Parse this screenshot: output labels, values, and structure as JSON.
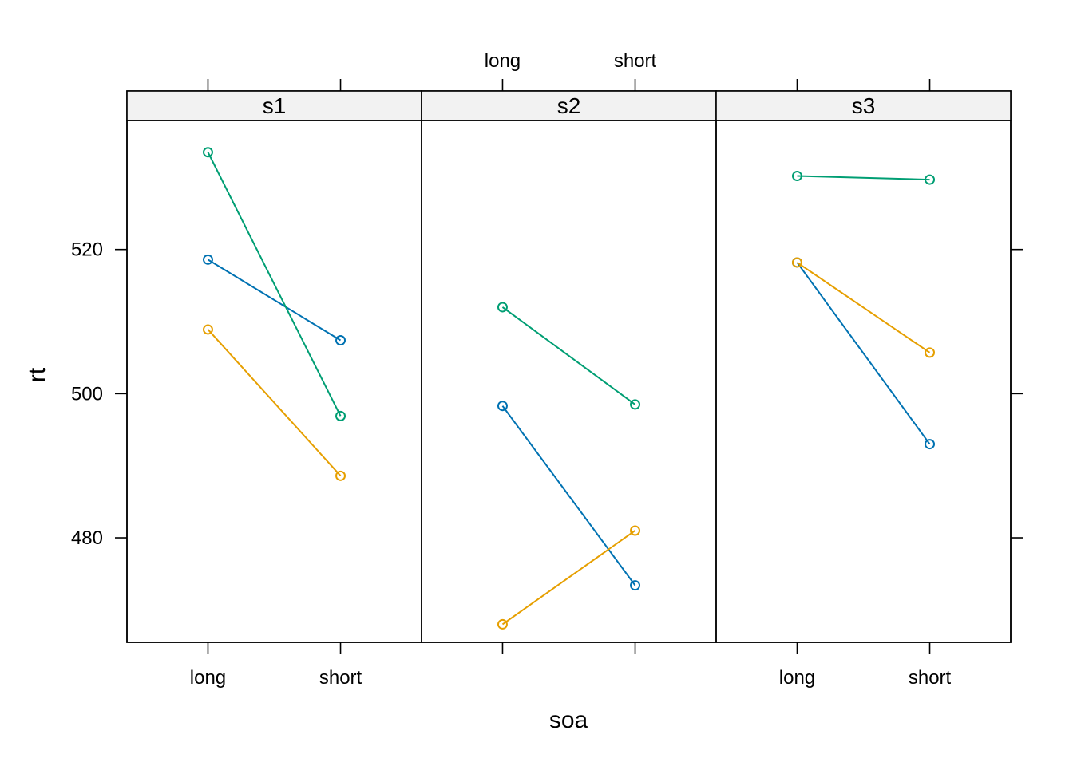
{
  "chart_data": {
    "type": "line",
    "xlabel": "soa",
    "ylabel": "rt",
    "categories": [
      "long",
      "short"
    ],
    "y_ticks": [
      480,
      500,
      520
    ],
    "ylim": [
      465.5,
      537.9
    ],
    "grid": false,
    "panels": [
      {
        "strip": "s1",
        "series": [
          {
            "color": "#0072B2",
            "values": [
              518.6,
              507.4
            ]
          },
          {
            "color": "#009E73",
            "values": [
              533.5,
              496.9
            ]
          },
          {
            "color": "#E69F00",
            "values": [
              508.9,
              488.6
            ]
          }
        ]
      },
      {
        "strip": "s2",
        "series": [
          {
            "color": "#0072B2",
            "values": [
              498.3,
              473.4
            ]
          },
          {
            "color": "#009E73",
            "values": [
              512.0,
              498.5
            ]
          },
          {
            "color": "#E69F00",
            "values": [
              468.0,
              481.0
            ]
          }
        ]
      },
      {
        "strip": "s3",
        "series": [
          {
            "color": "#0072B2",
            "values": [
              518.2,
              493.0
            ]
          },
          {
            "color": "#009E73",
            "values": [
              530.2,
              529.7
            ]
          },
          {
            "color": "#E69F00",
            "values": [
              518.2,
              505.7
            ]
          }
        ]
      }
    ]
  }
}
